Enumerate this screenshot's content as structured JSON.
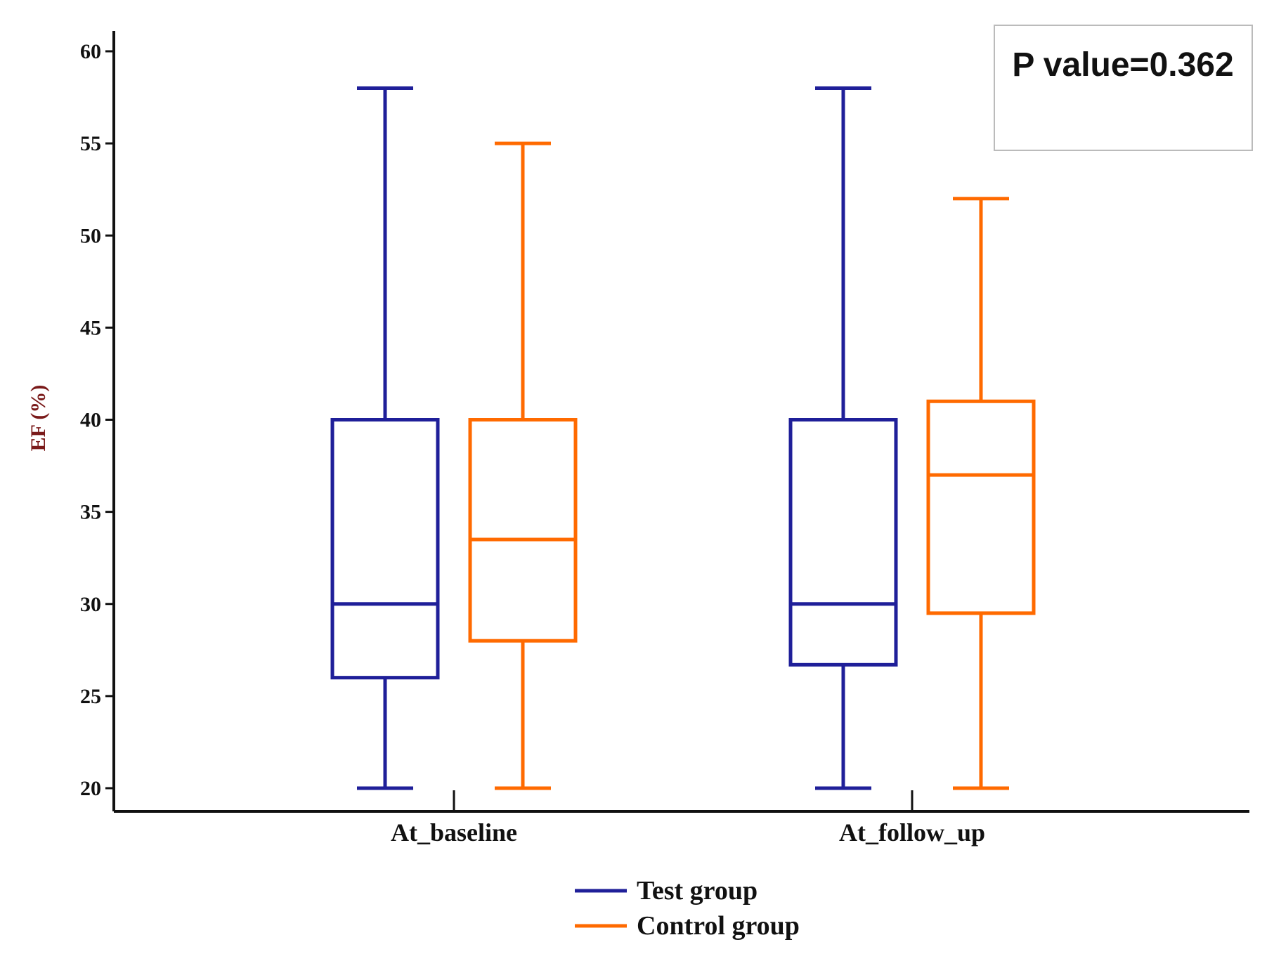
{
  "chart_data": {
    "type": "box",
    "ylabel": "EF (%)",
    "xlabel": "",
    "ylim": [
      20,
      60
    ],
    "yticks": [
      20,
      25,
      30,
      35,
      40,
      45,
      50,
      55,
      60
    ],
    "categories": [
      "At_baseline",
      "At_follow_up"
    ],
    "series": [
      {
        "name": "Test group",
        "color": "#1f1f99",
        "boxes": [
          {
            "min": 20,
            "q1": 26,
            "median": 30,
            "q3": 40,
            "max": 58
          },
          {
            "min": 20,
            "q1": 26.7,
            "median": 30,
            "q3": 40,
            "max": 58
          }
        ]
      },
      {
        "name": "Control group",
        "color": "#ff6a00",
        "boxes": [
          {
            "min": 20,
            "q1": 28,
            "median": 33.5,
            "q3": 40,
            "max": 55
          },
          {
            "min": 20,
            "q1": 29.5,
            "median": 37,
            "q3": 41,
            "max": 52
          }
        ]
      }
    ],
    "annotation": "P value=0.362",
    "ylabel_color": "#7a1a1a",
    "axis_color": "#111111",
    "legend_position": "bottom-center"
  }
}
